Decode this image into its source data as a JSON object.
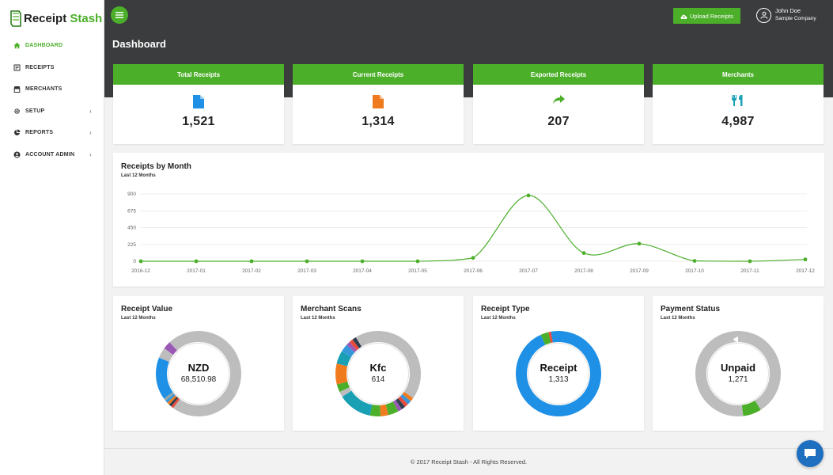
{
  "app": {
    "logo_receipt": "Receipt",
    "logo_stash": "Stash"
  },
  "sidebar": {
    "items": [
      {
        "label": "DASHBOARD",
        "icon": "home-icon",
        "active": true,
        "has_chevron": false
      },
      {
        "label": "RECEIPTS",
        "icon": "receipt-icon",
        "active": false,
        "has_chevron": false
      },
      {
        "label": "MERCHANTS",
        "icon": "store-icon",
        "active": false,
        "has_chevron": false
      },
      {
        "label": "SETUP",
        "icon": "gear-icon",
        "active": false,
        "has_chevron": true
      },
      {
        "label": "REPORTS",
        "icon": "pie-chart-icon",
        "active": false,
        "has_chevron": true
      },
      {
        "label": "ACCOUNT ADMIN",
        "icon": "user-circle-icon",
        "active": false,
        "has_chevron": true
      }
    ]
  },
  "header": {
    "title": "Dashboard",
    "upload_label": "Upload Receipts",
    "user_name": "John Doe",
    "user_company": "Sample Company"
  },
  "stats": [
    {
      "label": "Total Receipts",
      "value": "1,521",
      "icon": "file-icon",
      "color": "#1e90e6"
    },
    {
      "label": "Current Receipts",
      "value": "1,314",
      "icon": "file-icon",
      "color": "#f07b1e"
    },
    {
      "label": "Exported Receipts",
      "value": "207",
      "icon": "share-arrow-icon",
      "color": "#4caf2a"
    },
    {
      "label": "Merchants",
      "value": "4,987",
      "icon": "cutlery-icon",
      "color": "#1aa0b4"
    }
  ],
  "receipts_by_month": {
    "title": "Receipts by Month",
    "subtitle": "Last 12 Months"
  },
  "chart_data": {
    "type": "line",
    "categories": [
      "2016-12",
      "2017-01",
      "2017-02",
      "2017-03",
      "2017-04",
      "2017-05",
      "2017-06",
      "2017-07",
      "2017-08",
      "2017-09",
      "2017-10",
      "2017-11",
      "2017-12"
    ],
    "values": [
      0,
      0,
      0,
      0,
      0,
      0,
      45,
      880,
      110,
      235,
      5,
      0,
      25
    ],
    "yticks": [
      0,
      225,
      450,
      675,
      900
    ],
    "ylim": [
      0,
      900
    ],
    "grid": true,
    "color": "#4caf2a"
  },
  "donuts": [
    {
      "title": "Receipt Value",
      "subtitle": "Last 12 Months",
      "center_label": "NZD",
      "center_value": "68,510.98",
      "segments": [
        {
          "value": 60,
          "color": "#bdbdbd"
        },
        {
          "value": 1,
          "color": "#e74c3c"
        },
        {
          "value": 1,
          "color": "#2c3e50"
        },
        {
          "value": 1,
          "color": "#f07b1e"
        },
        {
          "value": 1,
          "color": "#3498db"
        },
        {
          "value": 1,
          "color": "#95a5a6"
        },
        {
          "value": 16,
          "color": "#1e90e6"
        },
        {
          "value": 4,
          "color": "#bdbdbd"
        },
        {
          "value": 3,
          "color": "#9b59b6"
        },
        {
          "value": 12,
          "color": "#bdbdbd"
        }
      ]
    },
    {
      "title": "Merchant Scans",
      "subtitle": "Last 12 Months",
      "center_label": "Kfc",
      "center_value": "614",
      "segments": [
        {
          "value": 35,
          "color": "#bdbdbd"
        },
        {
          "value": 1.5,
          "color": "#f07b1e"
        },
        {
          "value": 1.5,
          "color": "#3498db"
        },
        {
          "value": 1.5,
          "color": "#e74c3c"
        },
        {
          "value": 1.5,
          "color": "#2c3e50"
        },
        {
          "value": 1.5,
          "color": "#9b59b6"
        },
        {
          "value": 4,
          "color": "#4caf2a"
        },
        {
          "value": 3,
          "color": "#f07b1e"
        },
        {
          "value": 4,
          "color": "#4caf2a"
        },
        {
          "value": 13,
          "color": "#1aa0b4"
        },
        {
          "value": 2,
          "color": "#bdbdbd"
        },
        {
          "value": 3,
          "color": "#4caf2a"
        },
        {
          "value": 8,
          "color": "#f07b1e"
        },
        {
          "value": 5,
          "color": "#1aa0b4"
        },
        {
          "value": 3,
          "color": "#3498db"
        },
        {
          "value": 1.5,
          "color": "#9b59b6"
        },
        {
          "value": 1.5,
          "color": "#e74c3c"
        },
        {
          "value": 1.5,
          "color": "#2c3e50"
        },
        {
          "value": 9,
          "color": "#bdbdbd"
        }
      ]
    },
    {
      "title": "Receipt Type",
      "subtitle": "Last 12 Months",
      "center_label": "Receipt",
      "center_value": "1,313",
      "segments": [
        {
          "value": 93,
          "color": "#1e90e6"
        },
        {
          "value": 3,
          "color": "#4caf2a"
        },
        {
          "value": 1,
          "color": "#e74c3c"
        },
        {
          "value": 3,
          "color": "#1e90e6"
        }
      ]
    },
    {
      "title": "Payment Status",
      "subtitle": "Last 12 Months",
      "center_label": "Unpaid",
      "center_value": "1,271",
      "segments": [
        {
          "value": 41,
          "color": "#bdbdbd"
        },
        {
          "value": 7,
          "color": "#4caf2a"
        },
        {
          "value": 52,
          "color": "#bdbdbd"
        }
      ]
    }
  ],
  "footer": {
    "text": "© 2017 Receipt Stash - All Rights Reserved."
  }
}
